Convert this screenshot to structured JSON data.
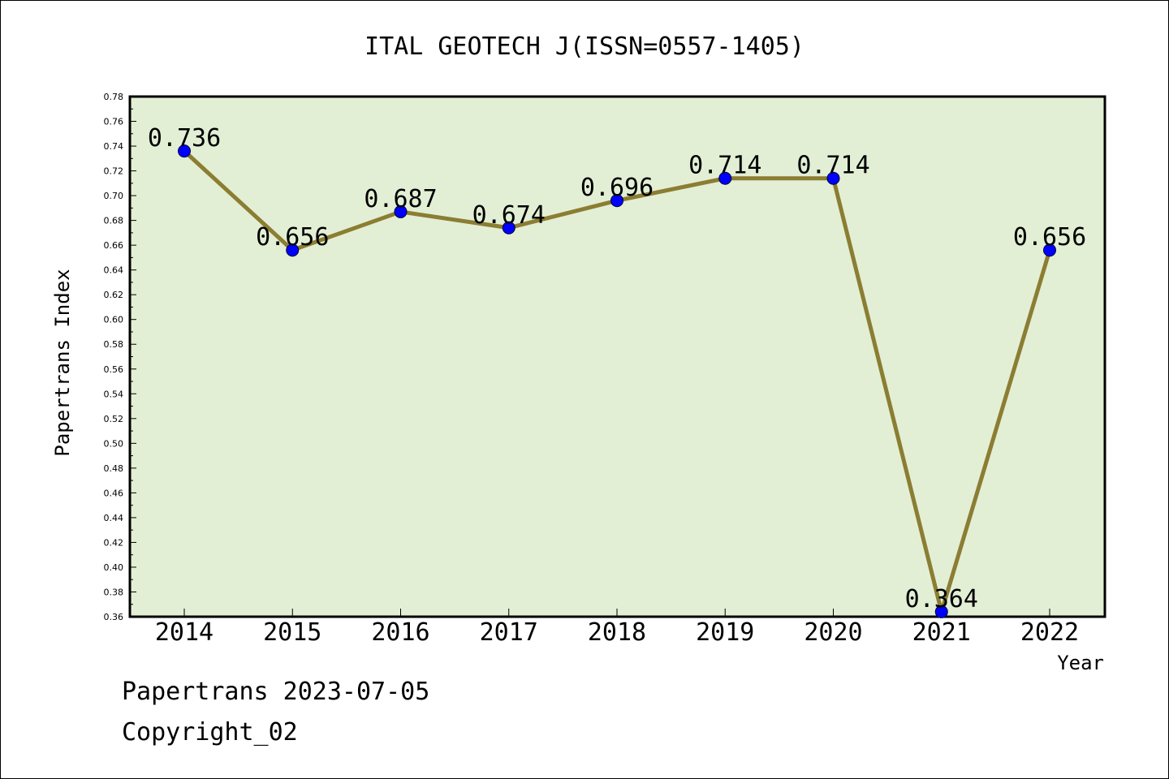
{
  "chart_data": {
    "type": "line",
    "title": "ITAL GEOTECH J(ISSN=0557-1405)",
    "xlabel": "Year",
    "ylabel": "Papertrans Index",
    "categories": [
      "2014",
      "2015",
      "2016",
      "2017",
      "2018",
      "2019",
      "2020",
      "2021",
      "2022"
    ],
    "values": [
      0.736,
      0.656,
      0.687,
      0.674,
      0.696,
      0.714,
      0.714,
      0.364,
      0.656
    ],
    "data_labels": [
      "0.736",
      "0.656",
      "0.687",
      "0.674",
      "0.696",
      "0.714",
      "0.714",
      "0.364",
      "0.656"
    ],
    "ylim": [
      0.36,
      0.78
    ],
    "yticks": [
      "0.36",
      "0.38",
      "0.40",
      "0.42",
      "0.44",
      "0.46",
      "0.48",
      "0.50",
      "0.52",
      "0.54",
      "0.56",
      "0.58",
      "0.60",
      "0.62",
      "0.64",
      "0.66",
      "0.68",
      "0.70",
      "0.72",
      "0.74",
      "0.76",
      "0.78"
    ],
    "grid": false,
    "legend": "none",
    "colors": {
      "plot_background": "#e2efd5",
      "line": "#8b7d32",
      "marker": "#0000ff",
      "axis": "#000000"
    }
  },
  "footer": {
    "source": "Papertrans 2023-07-05",
    "copyright": "Copyright_02"
  }
}
